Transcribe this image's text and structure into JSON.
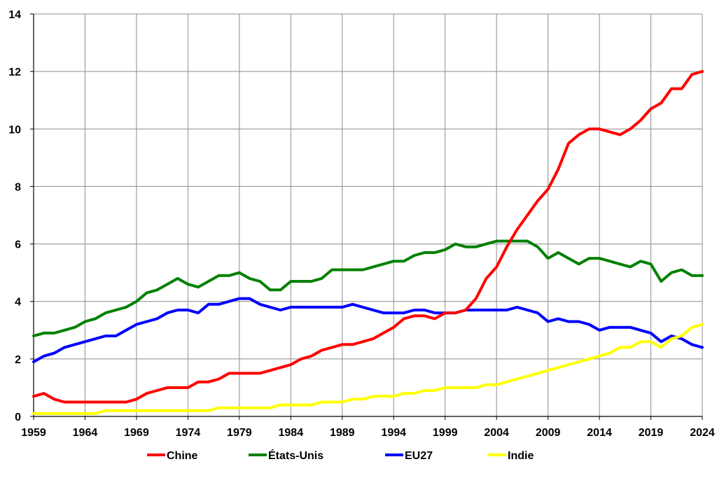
{
  "chart_data": {
    "type": "line",
    "title": "",
    "xlabel": "",
    "ylabel": "",
    "xlim": [
      1959,
      2024
    ],
    "ylim": [
      0,
      14
    ],
    "x_ticks": [
      "1959",
      "1964",
      "1969",
      "1974",
      "1979",
      "1984",
      "1989",
      "1994",
      "1999",
      "2004",
      "2009",
      "2014",
      "2019",
      "2024"
    ],
    "y_ticks": [
      "0",
      "2",
      "4",
      "6",
      "8",
      "10",
      "12",
      "14"
    ],
    "grid": true,
    "legend_position": "bottom",
    "x": [
      1959,
      1960,
      1961,
      1962,
      1963,
      1964,
      1965,
      1966,
      1967,
      1968,
      1969,
      1970,
      1971,
      1972,
      1973,
      1974,
      1975,
      1976,
      1977,
      1978,
      1979,
      1980,
      1981,
      1982,
      1983,
      1984,
      1985,
      1986,
      1987,
      1988,
      1989,
      1990,
      1991,
      1992,
      1993,
      1994,
      1995,
      1996,
      1997,
      1998,
      1999,
      2000,
      2001,
      2002,
      2003,
      2004,
      2005,
      2006,
      2007,
      2008,
      2009,
      2010,
      2011,
      2012,
      2013,
      2014,
      2015,
      2016,
      2017,
      2018,
      2019,
      2020,
      2021,
      2022,
      2023,
      2024
    ],
    "series": [
      {
        "name": "Chine",
        "color": "#ff0000",
        "values": [
          0.7,
          0.8,
          0.6,
          0.5,
          0.5,
          0.5,
          0.5,
          0.5,
          0.5,
          0.5,
          0.6,
          0.8,
          0.9,
          1.0,
          1.0,
          1.0,
          1.2,
          1.2,
          1.3,
          1.5,
          1.5,
          1.5,
          1.5,
          1.6,
          1.7,
          1.8,
          2.0,
          2.1,
          2.3,
          2.4,
          2.5,
          2.5,
          2.6,
          2.7,
          2.9,
          3.1,
          3.4,
          3.5,
          3.5,
          3.4,
          3.6,
          3.6,
          3.7,
          4.1,
          4.8,
          5.2,
          5.9,
          6.5,
          7.0,
          7.5,
          7.9,
          8.6,
          9.5,
          9.8,
          10.0,
          10.0,
          9.9,
          9.8,
          10.0,
          10.3,
          10.7,
          10.9,
          11.4,
          11.4,
          11.9,
          12.0
        ]
      },
      {
        "name": "États-Unis",
        "color": "#008000",
        "values": [
          2.8,
          2.9,
          2.9,
          3.0,
          3.1,
          3.3,
          3.4,
          3.6,
          3.7,
          3.8,
          4.0,
          4.3,
          4.4,
          4.6,
          4.8,
          4.6,
          4.5,
          4.7,
          4.9,
          4.9,
          5.0,
          4.8,
          4.7,
          4.4,
          4.4,
          4.7,
          4.7,
          4.7,
          4.8,
          5.1,
          5.1,
          5.1,
          5.1,
          5.2,
          5.3,
          5.4,
          5.4,
          5.6,
          5.7,
          5.7,
          5.8,
          6.0,
          5.9,
          5.9,
          6.0,
          6.1,
          6.1,
          6.1,
          6.1,
          5.9,
          5.5,
          5.7,
          5.5,
          5.3,
          5.5,
          5.5,
          5.4,
          5.3,
          5.2,
          5.4,
          5.3,
          4.7,
          5.0,
          5.1,
          4.9,
          4.9
        ]
      },
      {
        "name": "EU27",
        "color": "#0000ff",
        "values": [
          1.9,
          2.1,
          2.2,
          2.4,
          2.5,
          2.6,
          2.7,
          2.8,
          2.8,
          3.0,
          3.2,
          3.3,
          3.4,
          3.6,
          3.7,
          3.7,
          3.6,
          3.9,
          3.9,
          4.0,
          4.1,
          4.1,
          3.9,
          3.8,
          3.7,
          3.8,
          3.8,
          3.8,
          3.8,
          3.8,
          3.8,
          3.9,
          3.8,
          3.7,
          3.6,
          3.6,
          3.6,
          3.7,
          3.7,
          3.6,
          3.6,
          3.6,
          3.7,
          3.7,
          3.7,
          3.7,
          3.7,
          3.8,
          3.7,
          3.6,
          3.3,
          3.4,
          3.3,
          3.3,
          3.2,
          3.0,
          3.1,
          3.1,
          3.1,
          3.0,
          2.9,
          2.6,
          2.8,
          2.7,
          2.5,
          2.4
        ]
      },
      {
        "name": "Indie",
        "color": "#ffff00",
        "values": [
          0.1,
          0.1,
          0.1,
          0.1,
          0.1,
          0.1,
          0.1,
          0.2,
          0.2,
          0.2,
          0.2,
          0.2,
          0.2,
          0.2,
          0.2,
          0.2,
          0.2,
          0.2,
          0.3,
          0.3,
          0.3,
          0.3,
          0.3,
          0.3,
          0.4,
          0.4,
          0.4,
          0.4,
          0.5,
          0.5,
          0.5,
          0.6,
          0.6,
          0.7,
          0.7,
          0.7,
          0.8,
          0.8,
          0.9,
          0.9,
          1.0,
          1.0,
          1.0,
          1.0,
          1.1,
          1.1,
          1.2,
          1.3,
          1.4,
          1.5,
          1.6,
          1.7,
          1.8,
          1.9,
          2.0,
          2.1,
          2.2,
          2.4,
          2.4,
          2.6,
          2.6,
          2.4,
          2.7,
          2.8,
          3.1,
          3.2
        ]
      }
    ]
  }
}
